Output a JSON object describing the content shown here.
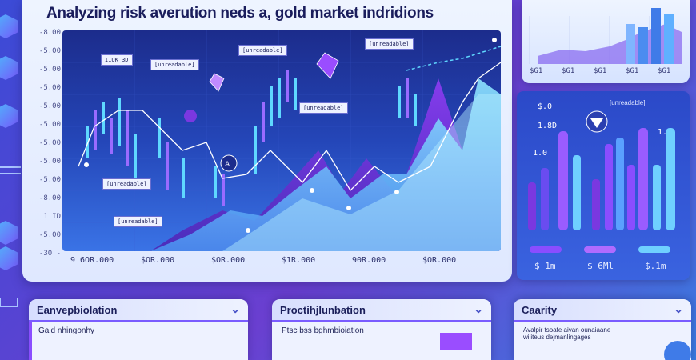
{
  "title": "Analyzing risk averution neds a, gold market indridions",
  "colors": {
    "background": "#4b45d6",
    "panel": "#eef4ff",
    "chart_bg": "#1f2f98",
    "purple": "#7a38e0",
    "cyan": "#5fd8ff",
    "blue_bar": "#3fa8ff"
  },
  "main_chart": {
    "y_ticks": [
      "-8.00",
      "-5.00",
      "-5.00",
      "-5.00",
      "-5.00",
      "-5.00",
      "-5.00",
      "-5.00",
      "-5.00",
      "-8.00",
      "1 ID",
      "-5.00",
      "-30 -"
    ],
    "x_ticks": [
      "9 6OR.000",
      "$OR.000",
      "$OR.000",
      "$1R.000",
      "90R.000",
      "$OR.000"
    ],
    "callouts": [
      "IIUK 3D",
      "[unreadable]",
      "[unreadable]",
      "[unreadable]",
      "[unreadable]",
      "[unreadable]",
      "[unreadable]"
    ]
  },
  "right_top": {
    "x_ticks": [
      "$G1",
      "$G1",
      "$G1",
      "$G1",
      "$G1"
    ]
  },
  "right_bars": {
    "heading": "[unreadable]",
    "left_labels": [
      "$.0",
      "1.8D",
      "1.0"
    ],
    "right_label": "1.0",
    "footer_values": [
      "$ 1m",
      "$ 6Ml",
      "$.1m"
    ]
  },
  "cards": [
    {
      "title": "Eanvepbiolation",
      "body": "Gald nhingonhy"
    },
    {
      "title": "Proctihjlunbation",
      "body": "Ptsc bss bghmbioiation"
    },
    {
      "title": "Caarity",
      "body": "Avalpir tsoafe aivan ounaiaane wiiiteus dejmanlingages"
    }
  ]
}
